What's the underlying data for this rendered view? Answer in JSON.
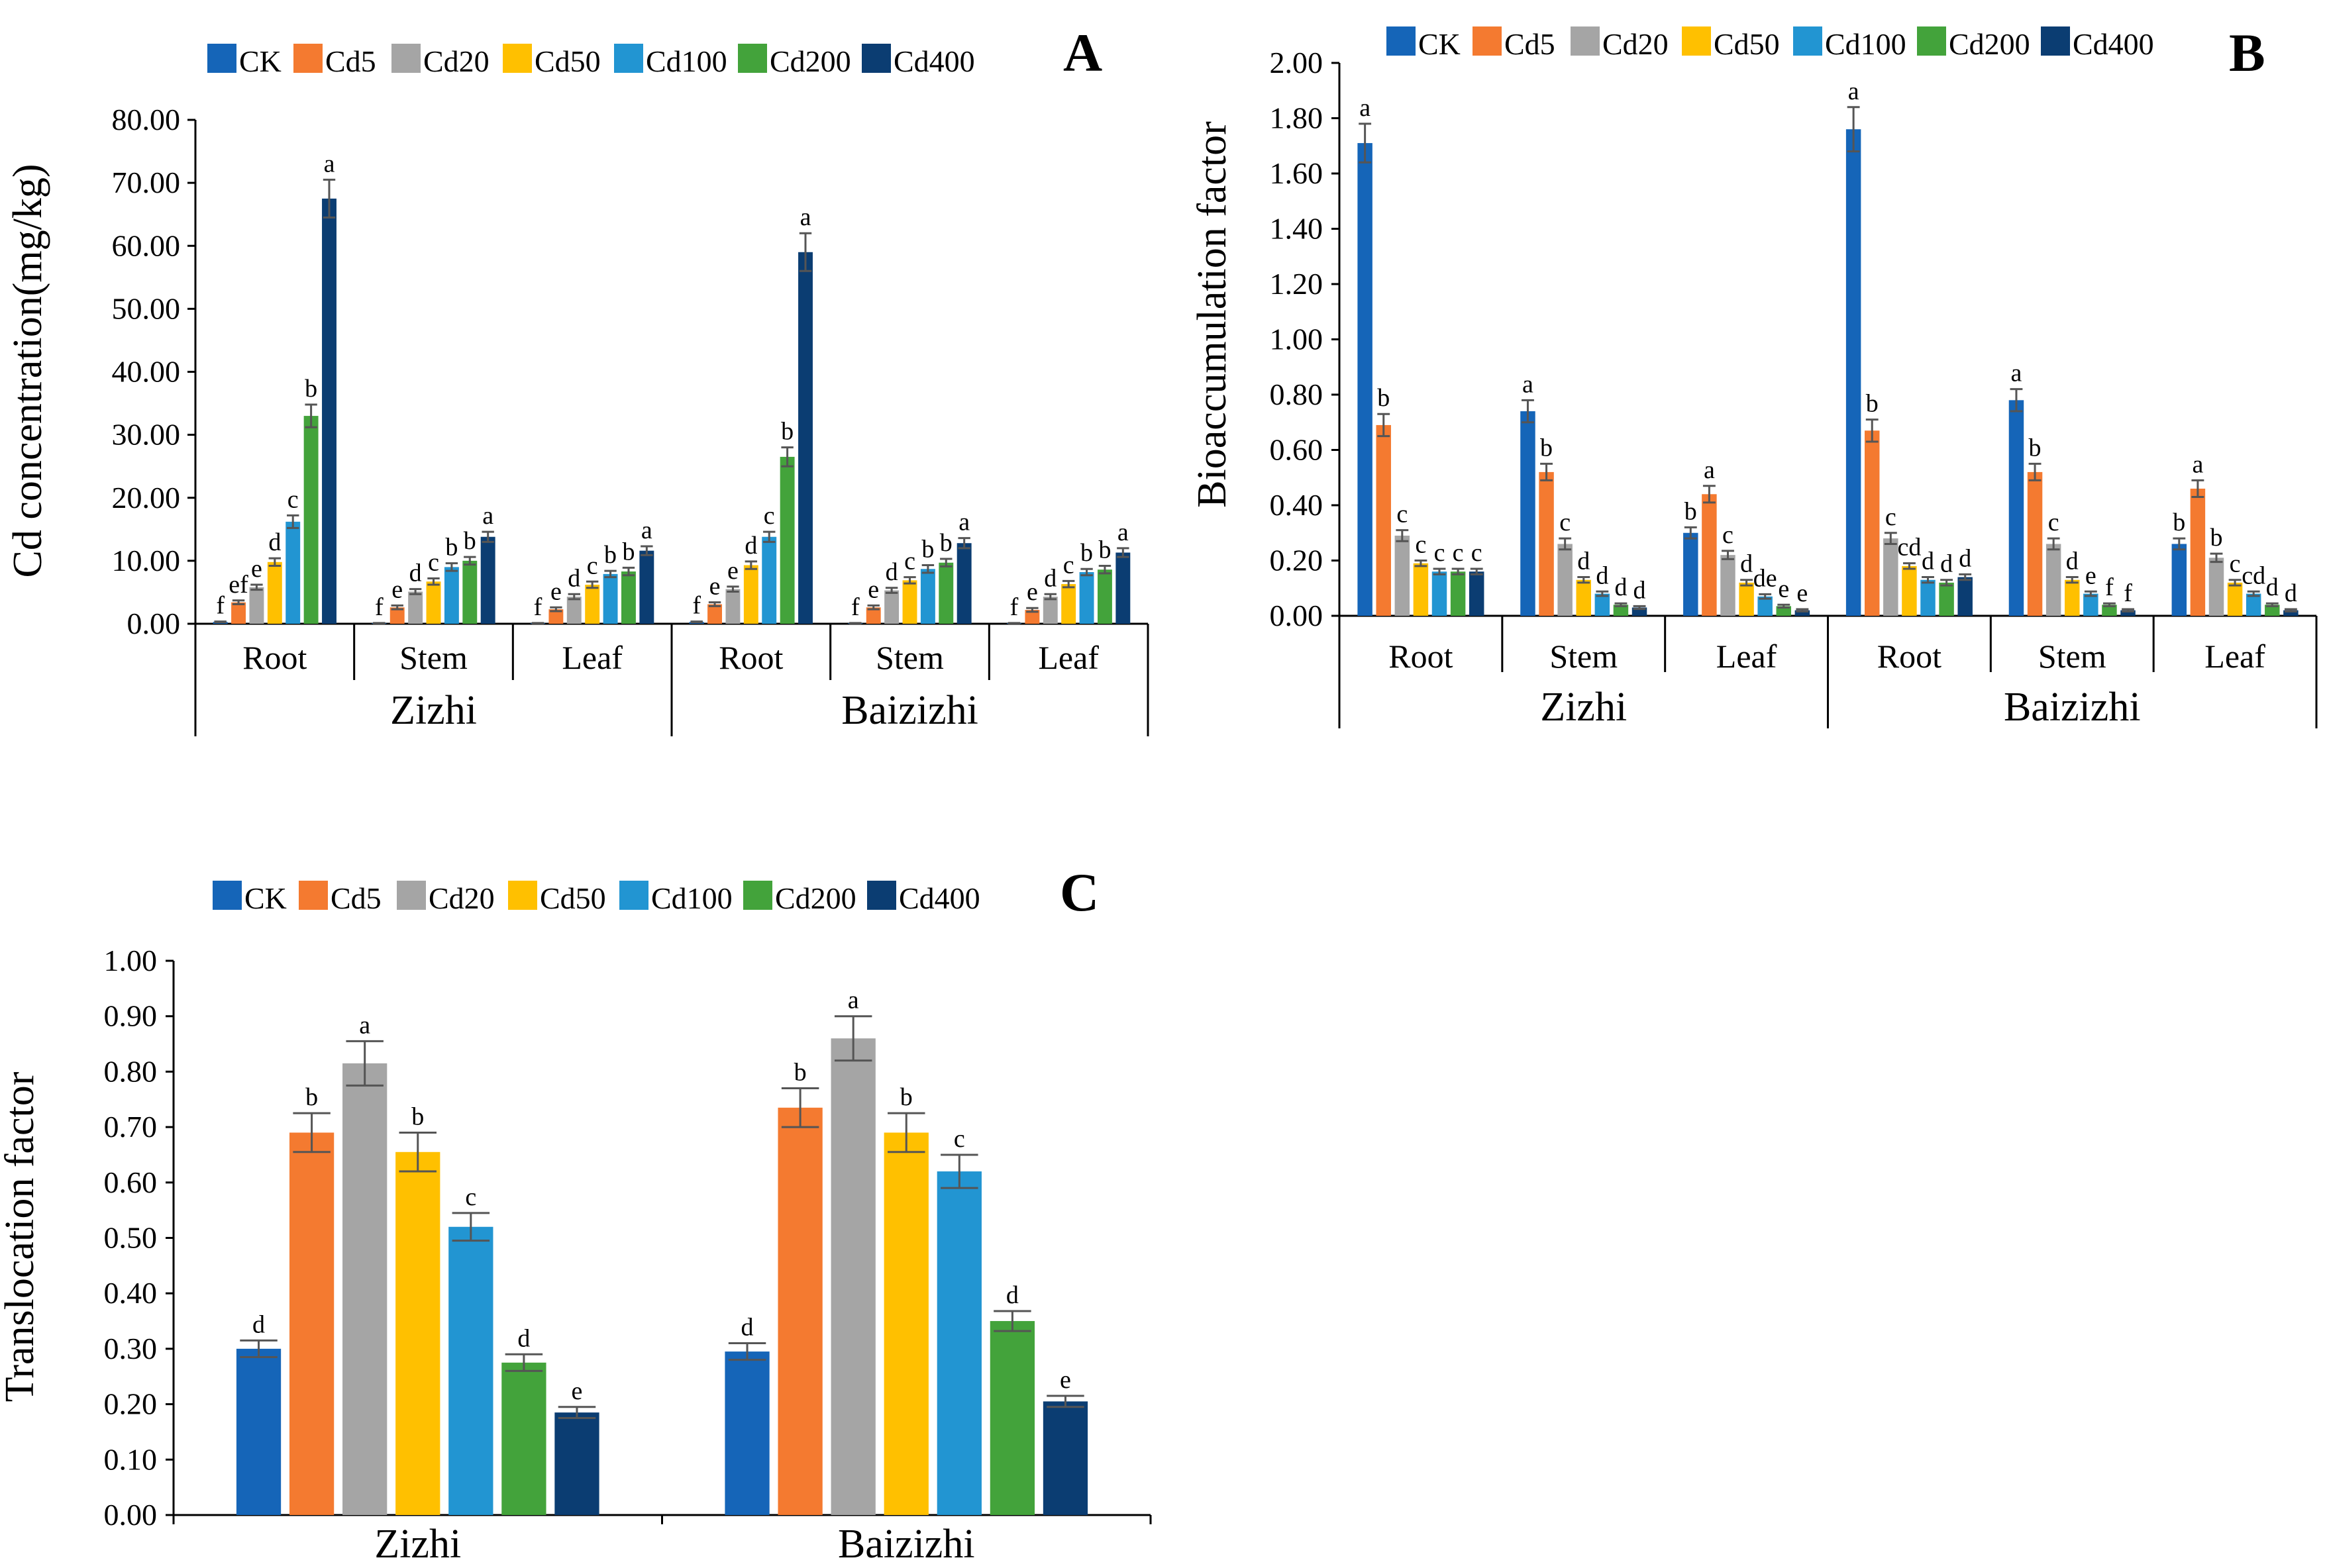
{
  "series_colors": [
    "#1565b8",
    "#f47a30",
    "#a5a5a5",
    "#ffc000",
    "#2295d2",
    "#43a33b",
    "#0b3d72"
  ],
  "chart_data": [
    {
      "id": "A",
      "type": "bar",
      "panel_label": "A",
      "ylabel": "Cd concentration(mg/kg)",
      "xlabel": "",
      "ylim": [
        0,
        80
      ],
      "yticks": [
        0,
        10,
        20,
        30,
        40,
        50,
        60,
        70,
        80
      ],
      "tick_decimals": 2,
      "legend": [
        "CK",
        "Cd5",
        "Cd20",
        "Cd50",
        "Cd100",
        "Cd200",
        "Cd400"
      ],
      "varieties": [
        "Zizhi",
        "Baizizhi"
      ],
      "categories": [
        "Root",
        "Stem",
        "Leaf",
        "Root",
        "Stem",
        "Leaf"
      ],
      "series": [
        {
          "name": "CK",
          "values": [
            0.3,
            0.1,
            0.1,
            0.3,
            0.1,
            0.1
          ],
          "errors": [
            0.05,
            0.02,
            0.02,
            0.05,
            0.02,
            0.02
          ],
          "letters": [
            "f",
            "f",
            "f",
            "f",
            "f",
            "f"
          ]
        },
        {
          "name": "Cd5",
          "values": [
            3.4,
            2.6,
            2.3,
            3.1,
            2.6,
            2.2
          ],
          "errors": [
            0.3,
            0.3,
            0.3,
            0.3,
            0.3,
            0.3
          ],
          "letters": [
            "ef",
            "e",
            "e",
            "e",
            "e",
            "e"
          ]
        },
        {
          "name": "Cd20",
          "values": [
            5.8,
            5.1,
            4.3,
            5.5,
            5.3,
            4.3
          ],
          "errors": [
            0.4,
            0.4,
            0.4,
            0.4,
            0.4,
            0.4
          ],
          "letters": [
            "e",
            "d",
            "d",
            "e",
            "d",
            "d"
          ]
        },
        {
          "name": "Cd50",
          "values": [
            9.8,
            6.7,
            6.2,
            9.3,
            6.9,
            6.3
          ],
          "errors": [
            0.6,
            0.5,
            0.5,
            0.6,
            0.5,
            0.5
          ],
          "letters": [
            "d",
            "c",
            "c",
            "d",
            "c",
            "c"
          ]
        },
        {
          "name": "Cd100",
          "values": [
            16.2,
            9.0,
            7.9,
            13.8,
            8.7,
            8.2
          ],
          "errors": [
            1.0,
            0.6,
            0.5,
            0.8,
            0.6,
            0.5
          ],
          "letters": [
            "c",
            "b",
            "b",
            "c",
            "b",
            "b"
          ]
        },
        {
          "name": "Cd200",
          "values": [
            33.0,
            10.0,
            8.3,
            26.5,
            9.7,
            8.6
          ],
          "errors": [
            1.8,
            0.6,
            0.6,
            1.5,
            0.6,
            0.6
          ],
          "letters": [
            "b",
            "b",
            "b",
            "b",
            "b",
            "b"
          ]
        },
        {
          "name": "Cd400",
          "values": [
            67.5,
            13.8,
            11.6,
            59.0,
            12.8,
            11.3
          ],
          "errors": [
            3.0,
            0.8,
            0.7,
            3.0,
            0.8,
            0.7
          ],
          "letters": [
            "a",
            "a",
            "a",
            "a",
            "a",
            "a"
          ]
        }
      ]
    },
    {
      "id": "B",
      "type": "bar",
      "panel_label": "B",
      "ylabel": "Bioaccumulation  factor",
      "xlabel": "",
      "ylim": [
        0,
        2
      ],
      "yticks": [
        0,
        0.2,
        0.4,
        0.6,
        0.8,
        1.0,
        1.2,
        1.4,
        1.6,
        1.8,
        2.0
      ],
      "tick_decimals": 2,
      "legend": [
        "CK",
        "Cd5",
        "Cd20",
        "Cd50",
        "Cd100",
        "Cd200",
        "Cd400"
      ],
      "varieties": [
        "Zizhi",
        "Baizizhi"
      ],
      "categories": [
        "Root",
        "Stem",
        "Leaf",
        "Root",
        "Stem",
        "Leaf"
      ],
      "series": [
        {
          "name": "CK",
          "values": [
            1.71,
            0.74,
            0.3,
            1.76,
            0.78,
            0.26
          ],
          "errors": [
            0.07,
            0.04,
            0.02,
            0.08,
            0.04,
            0.02
          ],
          "letters": [
            "a",
            "a",
            "b",
            "a",
            "a",
            "b"
          ]
        },
        {
          "name": "Cd5",
          "values": [
            0.69,
            0.52,
            0.44,
            0.67,
            0.52,
            0.46
          ],
          "errors": [
            0.04,
            0.03,
            0.03,
            0.04,
            0.03,
            0.03
          ],
          "letters": [
            "b",
            "b",
            "a",
            "b",
            "b",
            "a"
          ]
        },
        {
          "name": "Cd20",
          "values": [
            0.29,
            0.26,
            0.22,
            0.28,
            0.26,
            0.21
          ],
          "errors": [
            0.02,
            0.02,
            0.015,
            0.02,
            0.02,
            0.015
          ],
          "letters": [
            "c",
            "c",
            "c",
            "c",
            "c",
            "b"
          ]
        },
        {
          "name": "Cd50",
          "values": [
            0.19,
            0.13,
            0.12,
            0.18,
            0.13,
            0.12
          ],
          "errors": [
            0.01,
            0.01,
            0.01,
            0.01,
            0.01,
            0.01
          ],
          "letters": [
            "c",
            "d",
            "d",
            "cd",
            "d",
            "c"
          ]
        },
        {
          "name": "Cd100",
          "values": [
            0.16,
            0.08,
            0.07,
            0.13,
            0.08,
            0.08
          ],
          "errors": [
            0.01,
            0.008,
            0.008,
            0.01,
            0.008,
            0.008
          ],
          "letters": [
            "c",
            "d",
            "de",
            "d",
            "e",
            "cd"
          ]
        },
        {
          "name": "Cd200",
          "values": [
            0.16,
            0.04,
            0.035,
            0.12,
            0.04,
            0.04
          ],
          "errors": [
            0.01,
            0.005,
            0.005,
            0.01,
            0.005,
            0.005
          ],
          "letters": [
            "c",
            "d",
            "e",
            "d",
            "f",
            "d"
          ]
        },
        {
          "name": "Cd400",
          "values": [
            0.16,
            0.03,
            0.02,
            0.14,
            0.02,
            0.02
          ],
          "errors": [
            0.01,
            0.005,
            0.004,
            0.01,
            0.004,
            0.004
          ],
          "letters": [
            "c",
            "d",
            "e",
            "d",
            "f",
            "d"
          ]
        }
      ]
    },
    {
      "id": "C",
      "type": "bar",
      "panel_label": "C",
      "ylabel": "Translocation factor",
      "xlabel": "",
      "ylim": [
        0,
        1
      ],
      "yticks": [
        0,
        0.1,
        0.2,
        0.3,
        0.4,
        0.5,
        0.6,
        0.7,
        0.8,
        0.9,
        1.0
      ],
      "tick_decimals": 2,
      "legend": [
        "CK",
        "Cd5",
        "Cd20",
        "Cd50",
        "Cd100",
        "Cd200",
        "Cd400"
      ],
      "categories": [
        "Zizhi",
        "Baizizhi"
      ],
      "series": [
        {
          "name": "CK",
          "values": [
            0.3,
            0.295
          ],
          "errors": [
            0.015,
            0.015
          ],
          "letters": [
            "d",
            "d"
          ]
        },
        {
          "name": "Cd5",
          "values": [
            0.69,
            0.735
          ],
          "errors": [
            0.035,
            0.035
          ],
          "letters": [
            "b",
            "b"
          ]
        },
        {
          "name": "Cd20",
          "values": [
            0.815,
            0.86
          ],
          "errors": [
            0.04,
            0.04
          ],
          "letters": [
            "a",
            "a"
          ]
        },
        {
          "name": "Cd50",
          "values": [
            0.655,
            0.69
          ],
          "errors": [
            0.035,
            0.035
          ],
          "letters": [
            "b",
            "b"
          ]
        },
        {
          "name": "Cd100",
          "values": [
            0.52,
            0.62
          ],
          "errors": [
            0.025,
            0.03
          ],
          "letters": [
            "c",
            "c"
          ]
        },
        {
          "name": "Cd200",
          "values": [
            0.275,
            0.35
          ],
          "errors": [
            0.015,
            0.018
          ],
          "letters": [
            "d",
            "d"
          ]
        },
        {
          "name": "Cd400",
          "values": [
            0.185,
            0.205
          ],
          "errors": [
            0.01,
            0.01
          ],
          "letters": [
            "e",
            "e"
          ]
        }
      ]
    }
  ]
}
